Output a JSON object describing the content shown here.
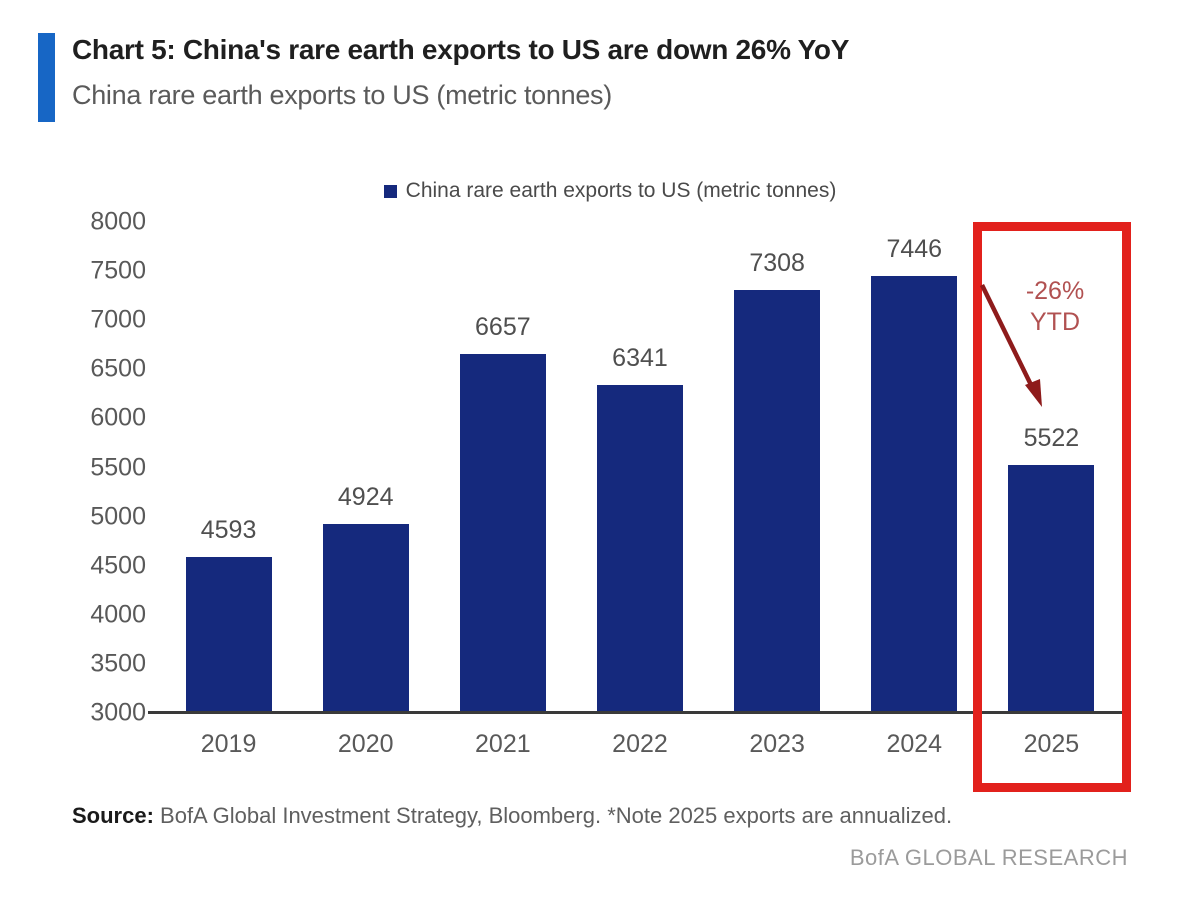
{
  "header": {
    "title": "Chart 5: China's rare earth exports to US are down 26% YoY",
    "subtitle": "China rare earth exports to US (metric tonnes)"
  },
  "legend": {
    "label": "China rare earth exports to US (metric tonnes)"
  },
  "chart_data": {
    "type": "bar",
    "title": "Chart 5: China's rare earth exports to US are down 26% YoY",
    "categories": [
      "2019",
      "2020",
      "2021",
      "2022",
      "2023",
      "2024",
      "2025"
    ],
    "values": [
      4593,
      4924,
      6657,
      6341,
      7308,
      7446,
      5522
    ],
    "series_name": "China rare earth exports to US (metric tonnes)",
    "xlabel": "",
    "ylabel": "",
    "ylim": [
      3000,
      8000
    ],
    "ytick_step": 500,
    "grid": false,
    "legend_position": "top",
    "annotation": {
      "highlighted_category": "2025",
      "label_line1": "-26%",
      "label_line2": "YTD"
    }
  },
  "annotation": {
    "line1": "-26%",
    "line2": "YTD"
  },
  "footer": {
    "source_label": "Source:",
    "source_text": " BofA Global Investment Strategy, Bloomberg. *Note 2025 exports are annualized.",
    "brand": "BofA GLOBAL RESEARCH"
  },
  "colors": {
    "bar": "#15297d",
    "accent": "#1766c5",
    "box": "#e2211c",
    "annotation": "#b15151",
    "arrow": "#8e1b1b",
    "title": "#1f1f1f",
    "subtitle": "#5a5a5a",
    "axis": "#595959",
    "value": "#4f4f4f",
    "axisline": "#3a3a3a",
    "legend": "#4a4a4a",
    "source": "#5f5f5f",
    "sourcelabel": "#1a1a1a",
    "brand": "#9b9b9b"
  }
}
